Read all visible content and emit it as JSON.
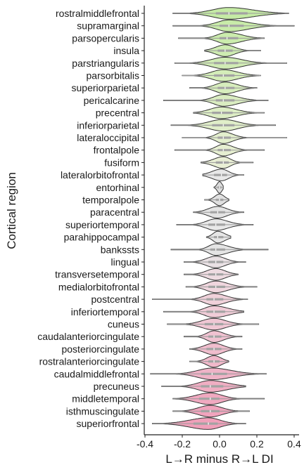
{
  "chart_data": {
    "type": "violin",
    "ylabel": "Cortical region",
    "xlabel": "L→R minus R→L DI",
    "xlim": [
      -0.42,
      0.42
    ],
    "xticks": [
      -0.4,
      -0.2,
      0.0,
      0.2,
      0.4
    ],
    "xtick_labels": [
      "-0.4",
      "-0.2",
      "0.0",
      "0.2",
      "0.4"
    ],
    "grid": false,
    "legend": "none",
    "categories": [
      "rostralmiddlefrontal",
      "supramarginal",
      "parsopercularis",
      "insula",
      "parstriangularis",
      "parsorbitalis",
      "superiorparietal",
      "pericalcarine",
      "precentral",
      "inferiorparietal",
      "lateraloccipital",
      "frontalpole",
      "fusiform",
      "lateralorbitofrontal",
      "entorhinal",
      "temporalpole",
      "paracentral",
      "superiortemporal",
      "parahippocampal",
      "bankssts",
      "lingual",
      "transversetemporal",
      "medialorbitofrontal",
      "postcentral",
      "inferiortemporal",
      "cuneus",
      "caudalanteriorcingulate",
      "posteriorcingulate",
      "rostralanteriorcingulate",
      "caudalmiddlefrontal",
      "precuneus",
      "middletemporal",
      "isthmuscingulate",
      "superiorfrontal"
    ],
    "colors": [
      "#c5eba5",
      "#c8eba9",
      "#cbecad",
      "#ceecb1",
      "#d1ecb5",
      "#d4edb9",
      "#d7edbd",
      "#daedc1",
      "#ddeec5",
      "#e0eec9",
      "#e3efcd",
      "#e6efd1",
      "#e9efd5",
      "#e8e8e8",
      "#dcdcdc",
      "#e0e0e0",
      "#e4e4e4",
      "#e8e8e8",
      "#e6e6e6",
      "#e4e4e4",
      "#e9e1e4",
      "#eedbe1",
      "#f0d6de",
      "#f0d1da",
      "#f0ccd7",
      "#f0c7d4",
      "#f0c2d1",
      "#f0bdcd",
      "#f0b8ca",
      "#f0b3c7",
      "#f0aec3",
      "#f0a9c0",
      "#f0a4bd",
      "#f0a0ba"
    ],
    "min": [
      -0.25,
      -0.25,
      -0.22,
      -0.08,
      -0.24,
      -0.2,
      -0.16,
      -0.3,
      -0.14,
      -0.26,
      -0.2,
      -0.24,
      -0.1,
      -0.09,
      -0.03,
      -0.08,
      -0.14,
      -0.23,
      -0.07,
      -0.26,
      -0.19,
      -0.19,
      -0.18,
      -0.36,
      -0.3,
      -0.28,
      -0.19,
      -0.16,
      -0.16,
      -0.37,
      -0.31,
      -0.25,
      -0.25,
      -0.36
    ],
    "q1": [
      -0.02,
      0.0,
      0.0,
      -0.01,
      -0.03,
      -0.03,
      -0.01,
      -0.02,
      -0.04,
      -0.04,
      -0.01,
      -0.01,
      -0.02,
      -0.03,
      -0.01,
      -0.02,
      -0.05,
      -0.06,
      -0.03,
      -0.05,
      -0.06,
      -0.06,
      -0.06,
      -0.07,
      -0.07,
      -0.08,
      -0.06,
      -0.07,
      -0.06,
      -0.1,
      -0.1,
      -0.11,
      -0.1,
      -0.14
    ],
    "median": [
      0.05,
      0.05,
      0.04,
      0.03,
      0.03,
      0.02,
      0.03,
      0.02,
      0.01,
      0.02,
      0.02,
      0.02,
      0.02,
      0.01,
      0.0,
      0.0,
      -0.01,
      -0.02,
      -0.01,
      -0.02,
      -0.02,
      -0.02,
      -0.02,
      -0.03,
      -0.03,
      -0.03,
      -0.03,
      -0.03,
      -0.03,
      -0.04,
      -0.05,
      -0.05,
      -0.05,
      -0.06
    ],
    "q3": [
      0.15,
      0.13,
      0.1,
      0.07,
      0.1,
      0.08,
      0.08,
      0.08,
      0.07,
      0.08,
      0.06,
      0.06,
      0.05,
      0.04,
      0.01,
      0.02,
      0.03,
      0.03,
      0.02,
      0.03,
      0.02,
      0.02,
      0.03,
      0.02,
      0.03,
      0.02,
      0.01,
      0.01,
      0.0,
      0.04,
      0.02,
      0.0,
      0.0,
      -0.01
    ],
    "max": [
      0.37,
      0.4,
      0.24,
      0.22,
      0.36,
      0.22,
      0.2,
      0.26,
      0.24,
      0.3,
      0.36,
      0.24,
      0.18,
      0.13,
      0.02,
      0.05,
      0.13,
      0.18,
      0.06,
      0.26,
      0.14,
      0.1,
      0.2,
      0.15,
      0.13,
      0.21,
      0.12,
      0.12,
      0.05,
      0.25,
      0.14,
      0.24,
      0.16,
      0.14
    ]
  }
}
